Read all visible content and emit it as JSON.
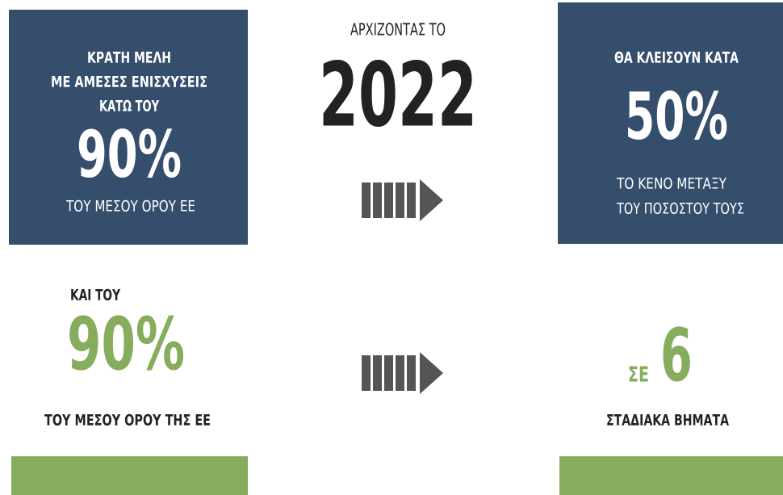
{
  "left_top": {
    "line1": "ΚΡΑΤΗ ΜΕΛΗ",
    "line2": "ΜΕ ΑΜΕΣΕΣ ΕΝΙΣΧΥΣΕΙΣ",
    "line3": "ΚΑΤΩ ΤΟΥ",
    "figure": "90%",
    "line4": "ΤΟΥ ΜΕΣΟΥ ΟΡΟΥ ΕΕ"
  },
  "center": {
    "caption": "ΑΡΧΙΖΟΝΤΑΣ ΤΟ",
    "year": "2022"
  },
  "right_top": {
    "line1": "ΘΑ ΚΛΕΙΣΟΥΝ ΚΑΤΑ",
    "figure": "50%",
    "line2": "ΤΟ ΚΕΝΟ ΜΕΤΑΞΥ",
    "line3": "ΤΟΥ ΠΟΣΟΣΤΟΥ ΤΟΥΣ"
  },
  "left_bottom": {
    "line1": "ΚΑΙ ΤΟΥ",
    "figure": "90%",
    "line2": "ΤΟΥ ΜΕΣΟΥ ΟΡΟΥ ΤΗΣ ΕΕ"
  },
  "right_bottom": {
    "prefix": "ΣΕ",
    "figure": "6",
    "line1": "ΣΤΑΔΙΑΚΑ ΒΗΜΑΤΑ"
  }
}
